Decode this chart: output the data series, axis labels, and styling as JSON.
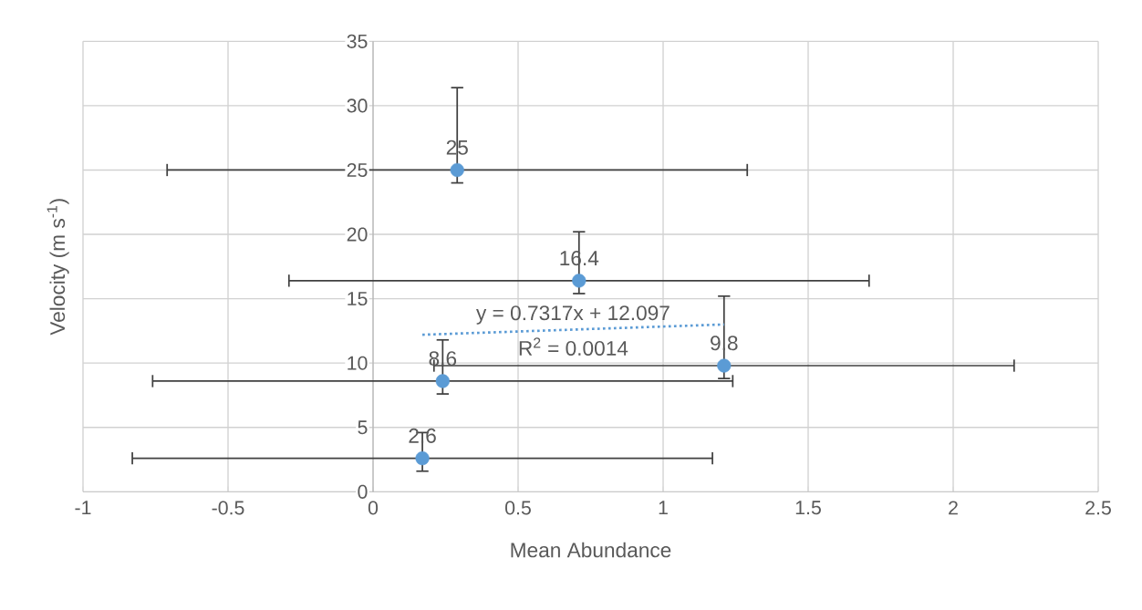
{
  "chart_data": {
    "type": "scatter",
    "xlabel": "Mean Abundance",
    "ylabel": "Velocity (m s$^{-1}$)",
    "annotations": [
      "y = 0.7317x + 12.097",
      "R$^{2}$ = 0.0014"
    ],
    "xlim": [
      -1,
      2.5
    ],
    "xticks": [
      -1,
      -0.5,
      0,
      0.5,
      1,
      1.5,
      2,
      2.5
    ],
    "ylim": [
      0,
      35
    ],
    "yticks": [
      0,
      5,
      10,
      15,
      20,
      25,
      30,
      35
    ],
    "grid": true,
    "series": [
      {
        "color": "#5b9bd5",
        "marker": "circle",
        "x": [
          0.29,
          0.71,
          0.24,
          1.21,
          0.17
        ],
        "values": [
          25,
          16.4,
          8.6,
          9.8,
          2.6
        ],
        "value_labels": [
          "25",
          "16.4",
          "8.6",
          "9.8",
          "2.6"
        ],
        "errors": [
          [
            24,
            31.4
          ],
          [
            15.4,
            20.2
          ],
          [
            7.6,
            11.8
          ],
          [
            8.8,
            15.2
          ],
          [
            1.6,
            4.6
          ]
        ],
        "xerrors": [
          1,
          1,
          1,
          1,
          1
        ]
      },
      {
        "type": "line",
        "color": "#5b9bd5",
        "line_style": "dotted",
        "marker": "none",
        "x": [
          0.17,
          1.21
        ],
        "values": [
          12.2,
          13.0
        ]
      }
    ]
  }
}
